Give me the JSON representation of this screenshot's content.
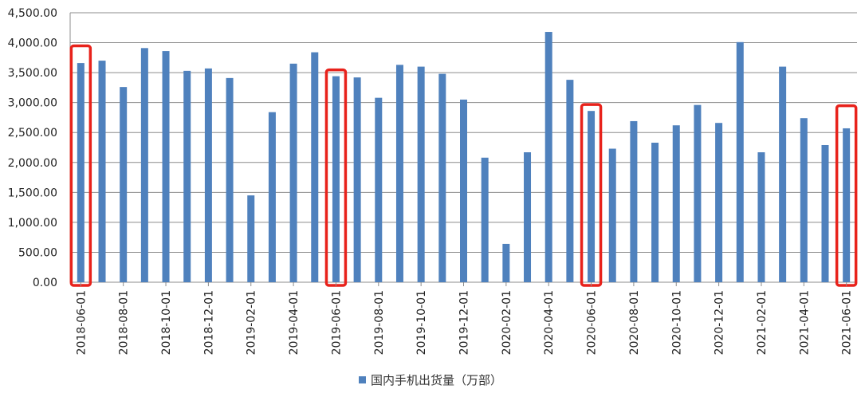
{
  "chart_data": {
    "type": "bar",
    "series": [
      {
        "name": "国内手机出货量（万部）",
        "color": "#4f81bd",
        "values": [
          3660,
          3700,
          3260,
          3910,
          3860,
          3530,
          3570,
          3410,
          1450,
          2840,
          3650,
          3840,
          3440,
          3420,
          3080,
          3630,
          3600,
          3480,
          3050,
          2080,
          640,
          2170,
          4180,
          3380,
          2860,
          2230,
          2690,
          2330,
          2620,
          2960,
          2660,
          4010,
          2170,
          3600,
          2740,
          2290,
          2570
        ]
      }
    ],
    "categories": [
      "2018-06-01",
      "2018-07-01",
      "2018-08-01",
      "2018-09-01",
      "2018-10-01",
      "2018-11-01",
      "2018-12-01",
      "2019-01-01",
      "2019-02-01",
      "2019-03-01",
      "2019-04-01",
      "2019-05-01",
      "2019-06-01",
      "2019-07-01",
      "2019-08-01",
      "2019-09-01",
      "2019-10-01",
      "2019-11-01",
      "2019-12-01",
      "2020-01-01",
      "2020-02-01",
      "2020-03-01",
      "2020-04-01",
      "2020-05-01",
      "2020-06-01",
      "2020-07-01",
      "2020-08-01",
      "2020-09-01",
      "2020-10-01",
      "2020-11-01",
      "2020-12-01",
      "2021-01-01",
      "2021-02-01",
      "2021-03-01",
      "2021-04-01",
      "2021-05-01",
      "2021-06-01"
    ],
    "x_tick_labels": [
      "2018-06-01",
      "",
      "2018-08-01",
      "",
      "2018-10-01",
      "",
      "2018-12-01",
      "",
      "2019-02-01",
      "",
      "2019-04-01",
      "",
      "2019-06-01",
      "",
      "2019-08-01",
      "",
      "2019-10-01",
      "",
      "2019-12-01",
      "",
      "2020-02-01",
      "",
      "2020-04-01",
      "",
      "2020-06-01",
      "",
      "2020-08-01",
      "",
      "2020-10-01",
      "",
      "2020-12-01",
      "",
      "2021-02-01",
      "",
      "2021-04-01",
      "",
      "2021-06-01"
    ],
    "y_tick_labels": [
      "0.00",
      "500.00",
      "1,000.00",
      "1,500.00",
      "2,000.00",
      "2,500.00",
      "3,000.00",
      "3,500.00",
      "4,000.00",
      "4,500.00"
    ],
    "ylim": [
      0,
      4500
    ],
    "grid": true,
    "legend_position": "bottom",
    "highlighted_categories": [
      "2018-06-01",
      "2019-06-01",
      "2020-06-01",
      "2021-06-01"
    ],
    "highlight_color": "#e8221b",
    "title": "",
    "xlabel": "",
    "ylabel": ""
  }
}
